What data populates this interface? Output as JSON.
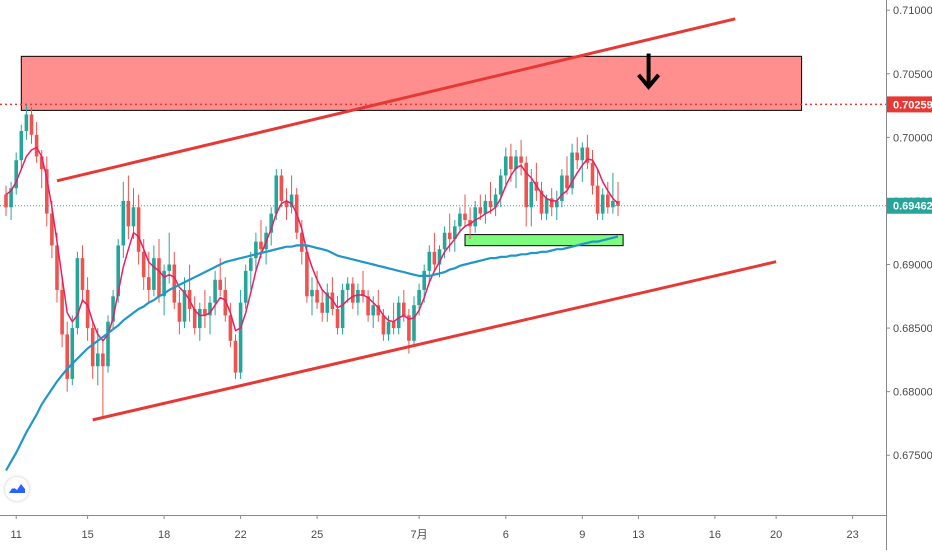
{
  "chart_data": {
    "type": "candlestick",
    "title": "",
    "xlabel": "",
    "ylabel": "",
    "x_ticks": [
      {
        "label": "11",
        "bar": 2
      },
      {
        "label": "15",
        "bar": 16
      },
      {
        "label": "18",
        "bar": 31
      },
      {
        "label": "22",
        "bar": 46
      },
      {
        "label": "25",
        "bar": 61
      },
      {
        "label": "7月",
        "bar": 81
      },
      {
        "label": "6",
        "bar": 98
      },
      {
        "label": "9",
        "bar": 113
      },
      {
        "label": "13",
        "bar": 124
      },
      {
        "label": "16",
        "bar": 139
      },
      {
        "label": "20",
        "bar": 151
      },
      {
        "label": "23",
        "bar": 166
      }
    ],
    "y_ticks": [
      "0.71000",
      "0.70500",
      "0.70000",
      "0.69500",
      "0.69000",
      "0.68500",
      "0.68000",
      "0.67500"
    ],
    "y_tick_values": [
      0.71,
      0.705,
      0.7,
      0.695,
      0.69,
      0.685,
      0.68,
      0.675
    ],
    "ylim": [
      0.6703,
      0.7108
    ],
    "xlim_bars": [
      0,
      170
    ],
    "grid": false,
    "price_labels": [
      {
        "text": "0.70259",
        "value": 0.70259,
        "color": "#e53935",
        "line_style": "dotted"
      },
      {
        "text": "0.69462",
        "value": 0.69462,
        "color": "#26a69a",
        "line_style": "dotted"
      }
    ],
    "colors": {
      "up": "#26a69a",
      "down": "#ef5350",
      "fast_ma": "#e91e63",
      "slow_ma": "#2196c9",
      "trendline": "#e53935",
      "resistance_zone": "#ff7f7f",
      "support_zone": "#7cfc7c"
    },
    "candles": [
      [
        0.6955,
        0.6962,
        0.6938,
        0.6945
      ],
      [
        0.6945,
        0.6965,
        0.6935,
        0.696
      ],
      [
        0.696,
        0.6988,
        0.6955,
        0.6982
      ],
      [
        0.6982,
        0.701,
        0.6975,
        0.7005
      ],
      [
        0.7005,
        0.7026,
        0.6998,
        0.7018
      ],
      [
        0.7018,
        0.7024,
        0.6995,
        0.7002
      ],
      [
        0.7002,
        0.7012,
        0.698,
        0.6985
      ],
      [
        0.6985,
        0.699,
        0.696,
        0.6975
      ],
      [
        0.6975,
        0.6985,
        0.693,
        0.694
      ],
      [
        0.694,
        0.695,
        0.6905,
        0.6915
      ],
      [
        0.6915,
        0.6925,
        0.687,
        0.688
      ],
      [
        0.688,
        0.689,
        0.6835,
        0.6845
      ],
      [
        0.6845,
        0.6855,
        0.68,
        0.681
      ],
      [
        0.681,
        0.686,
        0.6805,
        0.685
      ],
      [
        0.685,
        0.691,
        0.6845,
        0.6905
      ],
      [
        0.6905,
        0.6915,
        0.687,
        0.688
      ],
      [
        0.688,
        0.689,
        0.684,
        0.685
      ],
      [
        0.685,
        0.6855,
        0.681,
        0.682
      ],
      [
        0.682,
        0.685,
        0.6805,
        0.683
      ],
      [
        0.683,
        0.684,
        0.678,
        0.682
      ],
      [
        0.682,
        0.686,
        0.6815,
        0.6855
      ],
      [
        0.6855,
        0.688,
        0.685,
        0.6875
      ],
      [
        0.6875,
        0.692,
        0.687,
        0.6915
      ],
      [
        0.6915,
        0.6965,
        0.6905,
        0.695
      ],
      [
        0.695,
        0.697,
        0.692,
        0.693
      ],
      [
        0.693,
        0.696,
        0.692,
        0.6945
      ],
      [
        0.6945,
        0.6955,
        0.69,
        0.691
      ],
      [
        0.691,
        0.692,
        0.688,
        0.689
      ],
      [
        0.689,
        0.691,
        0.687,
        0.688
      ],
      [
        0.688,
        0.6915,
        0.6875,
        0.6905
      ],
      [
        0.6905,
        0.692,
        0.687,
        0.6875
      ],
      [
        0.6875,
        0.69,
        0.686,
        0.6895
      ],
      [
        0.6895,
        0.6925,
        0.6885,
        0.69
      ],
      [
        0.69,
        0.691,
        0.6865,
        0.687
      ],
      [
        0.687,
        0.688,
        0.6845,
        0.6855
      ],
      [
        0.6855,
        0.689,
        0.685,
        0.688
      ],
      [
        0.688,
        0.69,
        0.6855,
        0.6865
      ],
      [
        0.6865,
        0.6875,
        0.6845,
        0.685
      ],
      [
        0.685,
        0.687,
        0.684,
        0.6865
      ],
      [
        0.6865,
        0.688,
        0.685,
        0.686
      ],
      [
        0.686,
        0.6875,
        0.6845,
        0.687
      ],
      [
        0.687,
        0.6895,
        0.686,
        0.6888
      ],
      [
        0.6888,
        0.6905,
        0.6875,
        0.688
      ],
      [
        0.688,
        0.689,
        0.6855,
        0.686
      ],
      [
        0.686,
        0.687,
        0.6835,
        0.684
      ],
      [
        0.684,
        0.6845,
        0.681,
        0.6815
      ],
      [
        0.6815,
        0.688,
        0.681,
        0.687
      ],
      [
        0.687,
        0.69,
        0.6865,
        0.6895
      ],
      [
        0.6895,
        0.691,
        0.688,
        0.6905
      ],
      [
        0.6905,
        0.6925,
        0.6895,
        0.6918
      ],
      [
        0.6918,
        0.6935,
        0.6905,
        0.6912
      ],
      [
        0.6912,
        0.693,
        0.69,
        0.6925
      ],
      [
        0.6925,
        0.6945,
        0.6915,
        0.694
      ],
      [
        0.694,
        0.6975,
        0.6935,
        0.697
      ],
      [
        0.697,
        0.6975,
        0.6945,
        0.695
      ],
      [
        0.695,
        0.696,
        0.6935,
        0.6945
      ],
      [
        0.6945,
        0.697,
        0.694,
        0.6955
      ],
      [
        0.6955,
        0.696,
        0.692,
        0.6925
      ],
      [
        0.6925,
        0.6935,
        0.69,
        0.691
      ],
      [
        0.691,
        0.6915,
        0.687,
        0.6875
      ],
      [
        0.6875,
        0.689,
        0.686,
        0.688
      ],
      [
        0.688,
        0.6895,
        0.6865,
        0.687
      ],
      [
        0.687,
        0.688,
        0.6855,
        0.6862
      ],
      [
        0.6862,
        0.6885,
        0.6855,
        0.6878
      ],
      [
        0.6878,
        0.689,
        0.686,
        0.6865
      ],
      [
        0.6865,
        0.6875,
        0.6845,
        0.685
      ],
      [
        0.685,
        0.6885,
        0.6845,
        0.688
      ],
      [
        0.688,
        0.689,
        0.687,
        0.6885
      ],
      [
        0.6885,
        0.689,
        0.6865,
        0.687
      ],
      [
        0.687,
        0.6885,
        0.686,
        0.688
      ],
      [
        0.688,
        0.6895,
        0.687,
        0.6875
      ],
      [
        0.6875,
        0.688,
        0.6855,
        0.686
      ],
      [
        0.686,
        0.6875,
        0.685,
        0.6868
      ],
      [
        0.6868,
        0.688,
        0.6855,
        0.686
      ],
      [
        0.686,
        0.6865,
        0.684,
        0.6845
      ],
      [
        0.6845,
        0.686,
        0.684,
        0.6855
      ],
      [
        0.6855,
        0.687,
        0.6845,
        0.685
      ],
      [
        0.685,
        0.6875,
        0.6845,
        0.687
      ],
      [
        0.687,
        0.688,
        0.6855,
        0.686
      ],
      [
        0.686,
        0.6865,
        0.683,
        0.684
      ],
      [
        0.684,
        0.6875,
        0.6835,
        0.6868
      ],
      [
        0.6868,
        0.6885,
        0.686,
        0.688
      ],
      [
        0.688,
        0.69,
        0.687,
        0.6895
      ],
      [
        0.6895,
        0.6915,
        0.6885,
        0.691
      ],
      [
        0.691,
        0.6925,
        0.6895,
        0.69
      ],
      [
        0.69,
        0.6915,
        0.689,
        0.6912
      ],
      [
        0.6912,
        0.693,
        0.6905,
        0.6925
      ],
      [
        0.6925,
        0.694,
        0.691,
        0.692
      ],
      [
        0.692,
        0.6935,
        0.691,
        0.693
      ],
      [
        0.693,
        0.6945,
        0.6925,
        0.694
      ],
      [
        0.694,
        0.6955,
        0.693,
        0.6935
      ],
      [
        0.6935,
        0.6945,
        0.692,
        0.693
      ],
      [
        0.693,
        0.695,
        0.6925,
        0.6945
      ],
      [
        0.6945,
        0.6955,
        0.6935,
        0.694
      ],
      [
        0.694,
        0.6955,
        0.6932,
        0.695
      ],
      [
        0.695,
        0.6965,
        0.694,
        0.6945
      ],
      [
        0.6945,
        0.696,
        0.6938,
        0.6955
      ],
      [
        0.6955,
        0.6975,
        0.6945,
        0.697
      ],
      [
        0.697,
        0.6992,
        0.696,
        0.6985
      ],
      [
        0.6985,
        0.6995,
        0.6965,
        0.6975
      ],
      [
        0.6975,
        0.699,
        0.696,
        0.6985
      ],
      [
        0.6985,
        0.6998,
        0.697,
        0.698
      ],
      [
        0.698,
        0.6985,
        0.693,
        0.6945
      ],
      [
        0.6945,
        0.6975,
        0.693,
        0.6965
      ],
      [
        0.6965,
        0.698,
        0.695,
        0.6958
      ],
      [
        0.6958,
        0.6965,
        0.6935,
        0.694
      ],
      [
        0.694,
        0.6955,
        0.6935,
        0.6952
      ],
      [
        0.6952,
        0.696,
        0.6938,
        0.6945
      ],
      [
        0.6945,
        0.6958,
        0.6935,
        0.695
      ],
      [
        0.695,
        0.6975,
        0.6945,
        0.697
      ],
      [
        0.697,
        0.6985,
        0.6955,
        0.696
      ],
      [
        0.696,
        0.6995,
        0.6955,
        0.6988
      ],
      [
        0.6988,
        0.7,
        0.6975,
        0.6982
      ],
      [
        0.6982,
        0.6996,
        0.6965,
        0.6992
      ],
      [
        0.6992,
        0.7002,
        0.6975,
        0.698
      ],
      [
        0.698,
        0.699,
        0.6955,
        0.6962
      ],
      [
        0.6962,
        0.6975,
        0.6935,
        0.694
      ],
      [
        0.694,
        0.696,
        0.6935,
        0.6955
      ],
      [
        0.6955,
        0.6965,
        0.694,
        0.6945
      ],
      [
        0.6945,
        0.6972,
        0.694,
        0.695
      ],
      [
        0.695,
        0.6965,
        0.6938,
        0.6946
      ]
    ],
    "moving_averages": [
      {
        "kind": "fast",
        "values": [
          0.6955,
          0.6958,
          0.6965,
          0.6975,
          0.6985,
          0.699,
          0.6992,
          0.6985,
          0.6968,
          0.6945,
          0.6918,
          0.689,
          0.6862,
          0.6855,
          0.686,
          0.6872,
          0.6868,
          0.6855,
          0.6845,
          0.684,
          0.6845,
          0.6858,
          0.6878,
          0.6898,
          0.6912,
          0.6925,
          0.6922,
          0.6912,
          0.6902,
          0.6898,
          0.6895,
          0.689,
          0.6892,
          0.689,
          0.6882,
          0.6878,
          0.6872,
          0.6864,
          0.686,
          0.686,
          0.6862,
          0.6868,
          0.6874,
          0.6872,
          0.6862,
          0.6848,
          0.685,
          0.6862,
          0.6878,
          0.6895,
          0.6908,
          0.6918,
          0.6928,
          0.694,
          0.6948,
          0.695,
          0.6948,
          0.694,
          0.6928,
          0.691,
          0.6898,
          0.6888,
          0.688,
          0.6876,
          0.6872,
          0.6866,
          0.6868,
          0.6872,
          0.6875,
          0.6876,
          0.6876,
          0.6874,
          0.687,
          0.6866,
          0.686,
          0.6856,
          0.6855,
          0.6858,
          0.686,
          0.6857,
          0.6858,
          0.6864,
          0.6874,
          0.6886,
          0.6895,
          0.6902,
          0.691,
          0.6915,
          0.692,
          0.6926,
          0.693,
          0.6932,
          0.6935,
          0.6937,
          0.694,
          0.6942,
          0.6945,
          0.6952,
          0.6962,
          0.697,
          0.6976,
          0.6978,
          0.6972,
          0.6968,
          0.6962,
          0.6956,
          0.6952,
          0.695,
          0.695,
          0.6955,
          0.6958,
          0.6965,
          0.6972,
          0.6978,
          0.6983,
          0.6982,
          0.6975,
          0.6965,
          0.6958,
          0.6952,
          0.6948
        ]
      },
      {
        "kind": "slow",
        "values": [
          0.6738,
          0.6745,
          0.6752,
          0.676,
          0.6768,
          0.6775,
          0.6782,
          0.679,
          0.6796,
          0.6802,
          0.6808,
          0.6813,
          0.6818,
          0.6822,
          0.6826,
          0.683,
          0.6834,
          0.6837,
          0.684,
          0.6843,
          0.6846,
          0.6849,
          0.6852,
          0.6856,
          0.6859,
          0.6862,
          0.6865,
          0.6867,
          0.687,
          0.6872,
          0.6875,
          0.6877,
          0.688,
          0.6882,
          0.6884,
          0.6886,
          0.6888,
          0.689,
          0.6892,
          0.6894,
          0.6896,
          0.6898,
          0.69,
          0.6902,
          0.6903,
          0.6904,
          0.6905,
          0.6906,
          0.6907,
          0.6908,
          0.6909,
          0.691,
          0.6911,
          0.6912,
          0.6913,
          0.6914,
          0.6914,
          0.6915,
          0.6915,
          0.6915,
          0.6914,
          0.6913,
          0.6912,
          0.6911,
          0.6909,
          0.6907,
          0.6906,
          0.6905,
          0.6904,
          0.6903,
          0.6902,
          0.6901,
          0.69,
          0.6899,
          0.6898,
          0.6897,
          0.6896,
          0.6895,
          0.6894,
          0.6893,
          0.6892,
          0.6891,
          0.6891,
          0.6891,
          0.6892,
          0.6893,
          0.6894,
          0.6896,
          0.6897,
          0.6899,
          0.69,
          0.6901,
          0.6902,
          0.6903,
          0.6904,
          0.6905,
          0.6905,
          0.6906,
          0.6906,
          0.6907,
          0.6907,
          0.6908,
          0.6908,
          0.6909,
          0.6909,
          0.691,
          0.691,
          0.6911,
          0.6912,
          0.6912,
          0.6913,
          0.6914,
          0.6915,
          0.6916,
          0.6917,
          0.6918,
          0.6918,
          0.6919,
          0.692,
          0.6921,
          0.6922
        ]
      }
    ],
    "annotations": [
      {
        "type": "resistance_zone",
        "bar_start": 3,
        "bar_end": 156,
        "price_top": 0.70637,
        "price_bottom": 0.70212
      },
      {
        "type": "support_zone",
        "bar_start": 90,
        "bar_end": 121,
        "price_top": 0.69235,
        "price_bottom": 0.69148
      },
      {
        "type": "trendline",
        "name": "upper channel",
        "bar_start": 10,
        "price_start": 0.69658,
        "bar_end": 143,
        "price_end": 0.70932
      },
      {
        "type": "trendline",
        "name": "lower channel",
        "bar_start": 17,
        "price_start": 0.67778,
        "bar_end": 151,
        "price_end": 0.69022
      },
      {
        "type": "arrow",
        "direction": "down",
        "bar": 126,
        "price_from": 0.70659,
        "price_to": 0.70397
      }
    ]
  }
}
